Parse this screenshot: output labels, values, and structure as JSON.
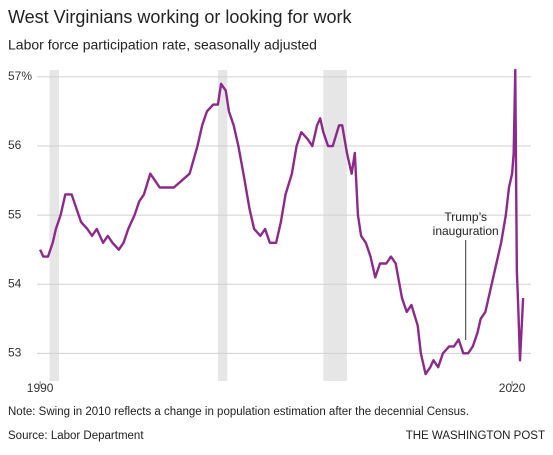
{
  "chart_data": {
    "type": "line",
    "title": "West Virginians working or looking for work",
    "subtitle": "Labor force participation rate, seasonally adjusted",
    "note": "Note: Swing in 2010 reflects a change in population estimation after the decennial Census.",
    "source": "Source: Labor Department",
    "credit": "THE WASHINGTON POST",
    "color": "#8b2a8b",
    "x": [
      1990.0,
      1990.2,
      1990.5,
      1990.8,
      1991.0,
      1991.3,
      1991.6,
      1992.0,
      1992.3,
      1992.6,
      1993.0,
      1993.3,
      1993.6,
      1994.0,
      1994.3,
      1994.6,
      1995.0,
      1995.3,
      1995.6,
      1996.0,
      1996.3,
      1996.6,
      1997.0,
      1997.3,
      1997.6,
      1998.0,
      1998.5,
      1999.0,
      1999.5,
      2000.0,
      2000.3,
      2000.6,
      2001.0,
      2001.3,
      2001.5,
      2001.8,
      2002.0,
      2002.3,
      2002.6,
      2003.0,
      2003.3,
      2003.6,
      2004.0,
      2004.3,
      2004.6,
      2005.0,
      2005.3,
      2005.6,
      2006.0,
      2006.3,
      2006.6,
      2007.0,
      2007.3,
      2007.6,
      2007.8,
      2008.0,
      2008.3,
      2008.6,
      2009.0,
      2009.2,
      2009.5,
      2009.8,
      2010.0,
      2010.2,
      2010.4,
      2010.7,
      2011.0,
      2011.3,
      2011.6,
      2012.0,
      2012.3,
      2012.6,
      2013.0,
      2013.3,
      2013.6,
      2014.0,
      2014.2,
      2014.5,
      2014.8,
      2015.0,
      2015.3,
      2015.6,
      2016.0,
      2016.3,
      2016.6,
      2016.9,
      2017.2,
      2017.5,
      2017.8,
      2018.0,
      2018.3,
      2018.6,
      2019.0,
      2019.3,
      2019.6,
      2019.8,
      2020.0,
      2020.1,
      2020.2,
      2020.3,
      2020.4,
      2020.5,
      2020.7
    ],
    "values": [
      54.5,
      54.4,
      54.4,
      54.6,
      54.8,
      55.0,
      55.3,
      55.3,
      55.1,
      54.9,
      54.8,
      54.7,
      54.8,
      54.6,
      54.7,
      54.6,
      54.5,
      54.6,
      54.8,
      55.0,
      55.2,
      55.3,
      55.6,
      55.5,
      55.4,
      55.4,
      55.4,
      55.5,
      55.6,
      56.0,
      56.3,
      56.5,
      56.6,
      56.6,
      56.9,
      56.8,
      56.5,
      56.3,
      56.0,
      55.5,
      55.1,
      54.8,
      54.7,
      54.8,
      54.6,
      54.6,
      54.9,
      55.3,
      55.6,
      56.0,
      56.2,
      56.1,
      56.0,
      56.3,
      56.4,
      56.2,
      56.0,
      56.0,
      56.3,
      56.3,
      55.9,
      55.6,
      55.9,
      55.0,
      54.7,
      54.6,
      54.4,
      54.1,
      54.3,
      54.3,
      54.4,
      54.3,
      53.8,
      53.6,
      53.7,
      53.4,
      53.0,
      52.7,
      52.8,
      52.9,
      52.8,
      53.0,
      53.1,
      53.1,
      53.2,
      53.0,
      53.0,
      53.1,
      53.3,
      53.5,
      53.6,
      53.9,
      54.3,
      54.6,
      55.0,
      55.4,
      55.6,
      55.9,
      57.1,
      54.2,
      53.6,
      52.9,
      53.8
    ],
    "xlim": [
      1989.8,
      2021.2
    ],
    "xticks": [
      1990,
      2020
    ],
    "ylim": [
      52.6,
      57.1
    ],
    "yticks": [
      53,
      54,
      55,
      56,
      {
        "value": 57,
        "label": "57%"
      }
    ],
    "grid": true,
    "shaded_periods": [
      [
        1990.6,
        1991.2
      ],
      [
        2001.3,
        2001.9
      ],
      [
        2008.0,
        2009.5
      ]
    ],
    "annotation": {
      "x": 2017.05,
      "lines": [
        "Trump’s",
        "inauguration"
      ]
    }
  }
}
